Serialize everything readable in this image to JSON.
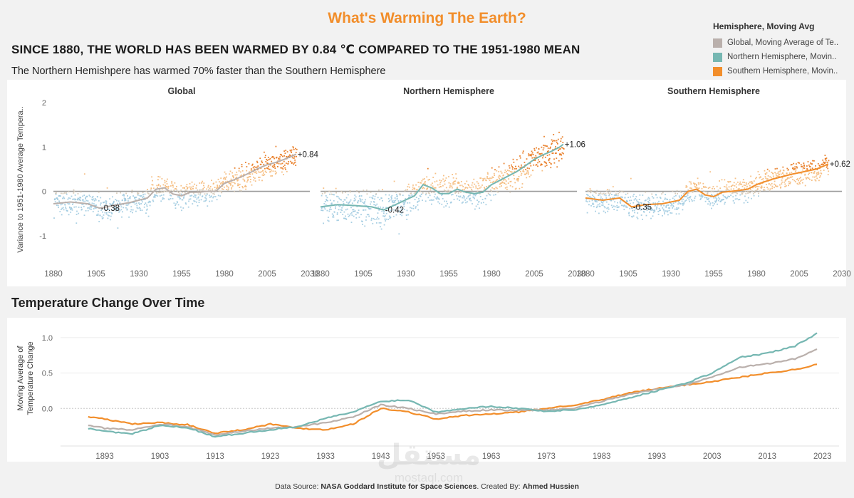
{
  "title": "What's Warming The Earth?",
  "headline": "SINCE 1880, THE WORLD HAS BEEN WARMED BY 0.84 ℃ COMPARED TO THE 1951-1980 MEAN",
  "subhead": "The Northern Hemishpere has warmed 70% faster than the Southern Hemisphere",
  "legend": {
    "title": "Hemisphere, Moving Avg",
    "items": [
      {
        "label": "Global, Moving Average of Te..",
        "color": "#bab0ac"
      },
      {
        "label": "Northern Hemisphere, Movin..",
        "color": "#76b7b2"
      },
      {
        "label": "Southern Hemisphere, Movin..",
        "color": "#f28e2b"
      }
    ]
  },
  "section_title": "Temperature Change Over Time",
  "footer": {
    "prefix": "Data Source: ",
    "source": "NASA Goddard Institute for Space Sciences",
    "middle": ".  Created By: ",
    "author": "Ahmed Hussien"
  },
  "watermark": {
    "arabic": "مستقل",
    "latin": "mostaql.com"
  },
  "colors": {
    "global": "#bab0ac",
    "north": "#76b7b2",
    "south": "#f28e2b",
    "cold": "#9fcae0",
    "warm": "#f5b979",
    "hot": "#e8751a"
  },
  "chart_data": [
    {
      "type": "scatter",
      "title": "Global",
      "ylabel": "Variance to 1951-1980 Average Tempera..",
      "xlim": [
        1880,
        2030
      ],
      "ylim": [
        -1.5,
        2
      ],
      "xticks": [
        1880,
        1905,
        1930,
        1955,
        1980,
        2005,
        2030
      ],
      "yticks": [
        -1,
        0,
        1,
        2
      ],
      "moving_avg": {
        "x": [
          1880,
          1890,
          1900,
          1907,
          1915,
          1925,
          1935,
          1940,
          1945,
          1950,
          1955,
          1960,
          1965,
          1970,
          1975,
          1980,
          1985,
          1990,
          1995,
          2000,
          2005,
          2010,
          2015,
          2020,
          2022
        ],
        "y": [
          -0.28,
          -0.24,
          -0.28,
          -0.38,
          -0.32,
          -0.25,
          -0.15,
          0.05,
          0.08,
          -0.06,
          -0.1,
          -0.02,
          -0.02,
          0.0,
          0.0,
          0.18,
          0.25,
          0.33,
          0.42,
          0.52,
          0.6,
          0.65,
          0.72,
          0.8,
          0.84
        ]
      },
      "annotations": [
        {
          "x": 1907,
          "y": -0.38,
          "label": "-0.38"
        },
        {
          "x": 2022,
          "y": 0.84,
          "label": "+0.84"
        }
      ]
    },
    {
      "type": "scatter",
      "title": "Northern Hemisphere",
      "xlim": [
        1880,
        2030
      ],
      "ylim": [
        -1.5,
        2
      ],
      "xticks": [
        1880,
        1905,
        1930,
        1955,
        1980,
        2005,
        2030
      ],
      "yticks": [
        -1,
        0,
        1,
        2
      ],
      "moving_avg": {
        "x": [
          1880,
          1890,
          1900,
          1910,
          1917,
          1925,
          1935,
          1940,
          1945,
          1950,
          1955,
          1960,
          1965,
          1970,
          1975,
          1980,
          1985,
          1990,
          1995,
          2000,
          2005,
          2010,
          2015,
          2020,
          2022
        ],
        "y": [
          -0.35,
          -0.3,
          -0.32,
          -0.35,
          -0.42,
          -0.28,
          -0.1,
          0.15,
          0.08,
          -0.05,
          -0.05,
          0.05,
          -0.02,
          -0.05,
          -0.02,
          0.15,
          0.25,
          0.35,
          0.45,
          0.58,
          0.72,
          0.82,
          0.9,
          1.0,
          1.06
        ]
      },
      "annotations": [
        {
          "x": 1917,
          "y": -0.42,
          "label": "-0.42"
        },
        {
          "x": 2022,
          "y": 1.06,
          "label": "+1.06"
        }
      ]
    },
    {
      "type": "scatter",
      "title": "Southern Hemisphere",
      "xlim": [
        1880,
        2030
      ],
      "ylim": [
        -1.5,
        2
      ],
      "xticks": [
        1880,
        1905,
        1930,
        1955,
        1980,
        2005,
        2030
      ],
      "yticks": [
        -1,
        0,
        1,
        2
      ],
      "moving_avg": {
        "x": [
          1880,
          1890,
          1900,
          1907,
          1915,
          1925,
          1935,
          1940,
          1945,
          1950,
          1955,
          1960,
          1965,
          1970,
          1975,
          1980,
          1985,
          1990,
          1995,
          2000,
          2005,
          2010,
          2015,
          2020,
          2022
        ],
        "y": [
          -0.15,
          -0.2,
          -0.15,
          -0.35,
          -0.3,
          -0.28,
          -0.2,
          0.0,
          0.05,
          -0.08,
          -0.12,
          -0.02,
          0.0,
          0.02,
          0.05,
          0.15,
          0.22,
          0.28,
          0.33,
          0.38,
          0.42,
          0.46,
          0.5,
          0.58,
          0.62
        ]
      },
      "annotations": [
        {
          "x": 1907,
          "y": -0.35,
          "label": "-0.35"
        },
        {
          "x": 2022,
          "y": 0.62,
          "label": "+0.62"
        }
      ]
    },
    {
      "type": "line",
      "title": "Temperature Change Over Time",
      "ylabel": "Moving Average of Temperature Change",
      "xlim": [
        1885,
        2026
      ],
      "ylim": [
        -0.45,
        1.1
      ],
      "xticks": [
        1893,
        1903,
        1913,
        1923,
        1933,
        1943,
        1953,
        1963,
        1973,
        1983,
        1993,
        2003,
        2013,
        2023
      ],
      "yticks": [
        0.0,
        0.5,
        1.0
      ],
      "x": [
        1890,
        1893,
        1898,
        1903,
        1908,
        1913,
        1918,
        1923,
        1928,
        1933,
        1938,
        1943,
        1948,
        1953,
        1958,
        1963,
        1968,
        1973,
        1978,
        1983,
        1988,
        1993,
        1998,
        2003,
        2008,
        2013,
        2018,
        2022
      ],
      "series": [
        {
          "name": "Global",
          "values": [
            -0.24,
            -0.28,
            -0.3,
            -0.22,
            -0.26,
            -0.38,
            -0.32,
            -0.28,
            -0.26,
            -0.2,
            -0.12,
            0.05,
            0.0,
            -0.08,
            -0.04,
            -0.02,
            -0.03,
            -0.02,
            0.0,
            0.1,
            0.2,
            0.27,
            0.33,
            0.45,
            0.58,
            0.63,
            0.7,
            0.84
          ]
        },
        {
          "name": "Northern Hemisphere",
          "values": [
            -0.28,
            -0.32,
            -0.36,
            -0.24,
            -0.27,
            -0.4,
            -0.35,
            -0.3,
            -0.26,
            -0.14,
            -0.05,
            0.1,
            0.12,
            -0.05,
            0.0,
            0.03,
            0.0,
            -0.04,
            -0.02,
            0.05,
            0.15,
            0.25,
            0.35,
            0.5,
            0.72,
            0.78,
            0.88,
            1.06
          ]
        },
        {
          "name": "Southern Hemisphere",
          "values": [
            -0.12,
            -0.15,
            -0.22,
            -0.2,
            -0.23,
            -0.35,
            -0.3,
            -0.22,
            -0.28,
            -0.3,
            -0.22,
            0.0,
            -0.05,
            -0.15,
            -0.1,
            -0.08,
            -0.05,
            0.0,
            0.05,
            0.12,
            0.22,
            0.28,
            0.33,
            0.38,
            0.44,
            0.5,
            0.55,
            0.62
          ]
        }
      ]
    }
  ]
}
